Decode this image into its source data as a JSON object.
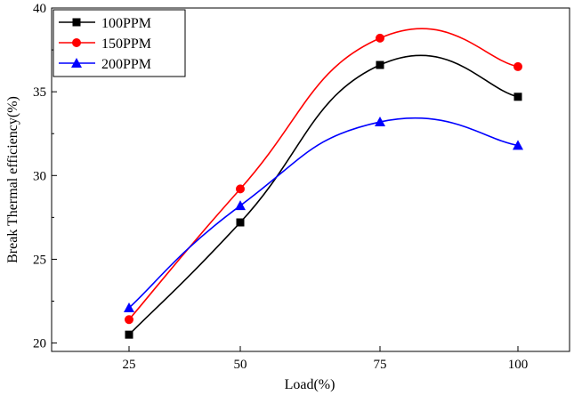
{
  "chart_data": {
    "type": "line",
    "title": "",
    "xlabel": "Load(%)",
    "ylabel": "Break Thermal efficiency(%)",
    "categories": [
      25,
      50,
      75,
      100
    ],
    "x_ticks": [
      "25",
      "50",
      "75",
      "100"
    ],
    "y_ticks": [
      "20",
      "25",
      "30",
      "35",
      "40"
    ],
    "ylim": [
      19.5,
      40
    ],
    "legend_position": "top-left",
    "series": [
      {
        "name": "100PPM",
        "color": "#000000",
        "marker": "square",
        "values": [
          20.5,
          27.2,
          36.6,
          34.7
        ]
      },
      {
        "name": "150PPM",
        "color": "#ff0000",
        "marker": "circle",
        "values": [
          21.4,
          29.2,
          38.2,
          36.5
        ]
      },
      {
        "name": "200PPM",
        "color": "#0000ff",
        "marker": "triangle",
        "values": [
          22.1,
          28.2,
          33.2,
          31.8
        ]
      }
    ]
  }
}
